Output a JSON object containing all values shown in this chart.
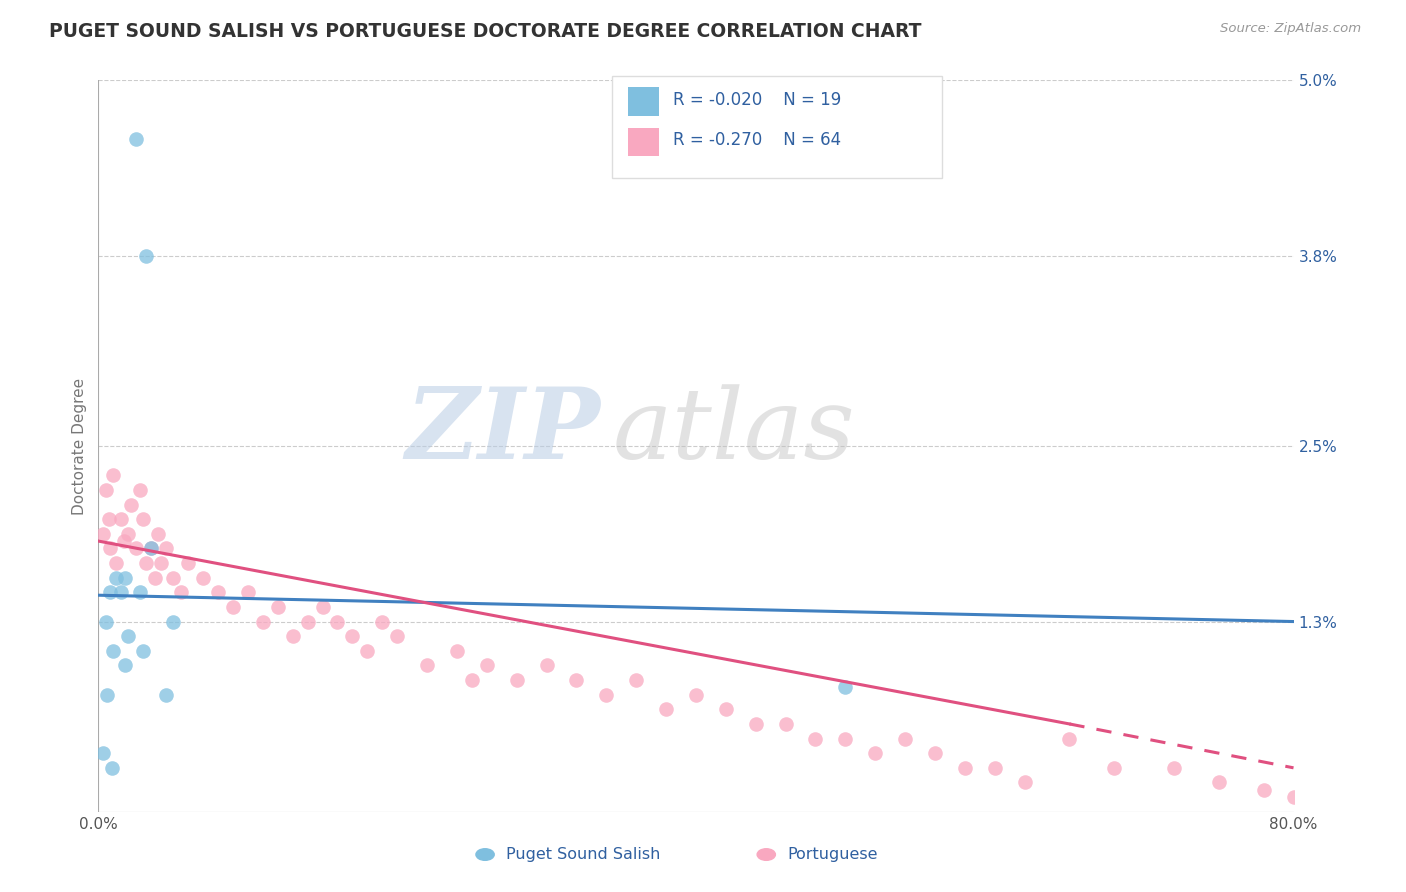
{
  "title": "PUGET SOUND SALISH VS PORTUGUESE DOCTORATE DEGREE CORRELATION CHART",
  "source": "Source: ZipAtlas.com",
  "ylabel": "Doctorate Degree",
  "xlim": [
    0.0,
    80.0
  ],
  "ylim": [
    0.0,
    5.0
  ],
  "legend_r1": "R = -0.020",
  "legend_n1": "N = 19",
  "legend_r2": "R = -0.270",
  "legend_n2": "N = 64",
  "color_blue": "#7fbfdf",
  "color_pink": "#f9a8c0",
  "color_blue_line": "#4080c0",
  "color_pink_line": "#e05080",
  "color_text_blue": "#3060a0",
  "watermark_zip": "ZIP",
  "watermark_atlas": "atlas",
  "puget_x": [
    2.5,
    3.2,
    0.5,
    0.8,
    1.0,
    1.5,
    1.8,
    2.0,
    2.8,
    3.5,
    0.3,
    0.6,
    0.9,
    1.2,
    4.5,
    5.0,
    3.0,
    50.0,
    1.8
  ],
  "puget_y": [
    4.6,
    3.8,
    1.3,
    1.5,
    1.1,
    1.5,
    1.0,
    1.2,
    1.5,
    1.8,
    0.4,
    0.8,
    0.3,
    1.6,
    0.8,
    1.3,
    1.1,
    0.85,
    1.6
  ],
  "portuguese_x": [
    0.3,
    0.5,
    0.7,
    0.8,
    1.0,
    1.2,
    1.5,
    1.7,
    2.0,
    2.2,
    2.5,
    2.8,
    3.0,
    3.2,
    3.5,
    3.8,
    4.0,
    4.2,
    4.5,
    5.0,
    5.5,
    6.0,
    7.0,
    8.0,
    9.0,
    10.0,
    11.0,
    12.0,
    13.0,
    14.0,
    15.0,
    17.0,
    18.0,
    19.0,
    20.0,
    22.0,
    24.0,
    25.0,
    26.0,
    28.0,
    30.0,
    32.0,
    34.0,
    36.0,
    38.0,
    40.0,
    42.0,
    44.0,
    46.0,
    48.0,
    50.0,
    52.0,
    54.0,
    56.0,
    58.0,
    60.0,
    62.0,
    65.0,
    68.0,
    72.0,
    75.0,
    78.0,
    80.0,
    16.0
  ],
  "portuguese_y": [
    1.9,
    2.2,
    2.0,
    1.8,
    2.3,
    1.7,
    2.0,
    1.85,
    1.9,
    2.1,
    1.8,
    2.2,
    2.0,
    1.7,
    1.8,
    1.6,
    1.9,
    1.7,
    1.8,
    1.6,
    1.5,
    1.7,
    1.6,
    1.5,
    1.4,
    1.5,
    1.3,
    1.4,
    1.2,
    1.3,
    1.4,
    1.2,
    1.1,
    1.3,
    1.2,
    1.0,
    1.1,
    0.9,
    1.0,
    0.9,
    1.0,
    0.9,
    0.8,
    0.9,
    0.7,
    0.8,
    0.7,
    0.6,
    0.6,
    0.5,
    0.5,
    0.4,
    0.5,
    0.4,
    0.3,
    0.3,
    0.2,
    0.5,
    0.3,
    0.3,
    0.2,
    0.15,
    0.1,
    1.3
  ],
  "blue_line_x0": 0.0,
  "blue_line_x1": 80.0,
  "blue_line_y0": 1.48,
  "blue_line_y1": 1.3,
  "pink_line_x0": 0.0,
  "pink_line_x1": 65.0,
  "pink_line_y0": 1.85,
  "pink_line_y1": 0.6,
  "pink_dash_x0": 65.0,
  "pink_dash_x1": 80.0,
  "pink_dash_y0": 0.6,
  "pink_dash_y1": 0.3
}
